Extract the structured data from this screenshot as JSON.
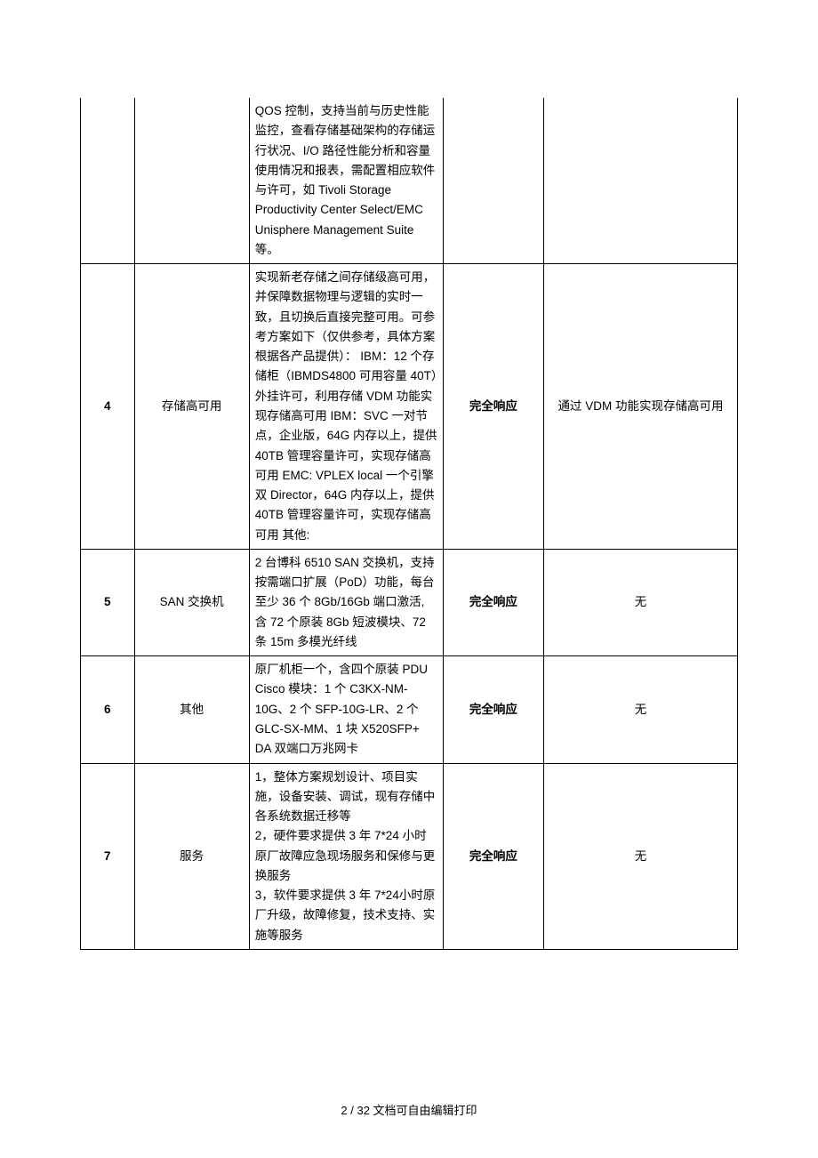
{
  "rows": [
    {
      "idx": "",
      "name": "",
      "desc": "QOS 控制，支持当前与历史性能监控，查看存储基础架构的存储运行状况、I/O 路径性能分析和容量使用情况和报表，需配置相应软件与许可，如 Tivoli Storage Productivity Center Select/EMC Unisphere Management Suite 等。",
      "resp": "",
      "note": "",
      "continuation": true
    },
    {
      "idx": "4",
      "name": "存储高可用",
      "desc": "实现新老存储之间存储级高可用，并保障数据物理与逻辑的实时一致，且切换后直接完整可用。可参考方案如下（仅供参考，具体方案根据各产品提供）： IBM：12 个存储柜（IBMDS4800 可用容量 40T）外挂许可，利用存储 VDM 功能实现存储高可用 IBM：SVC 一对节点，企业版，64G 内存以上，提供 40TB 管理容量许可，实现存储高可用 EMC: VPLEX local  一个引擎双 Director，64G 内存以上，提供 40TB 管理容量许可，实现存储高可用 其他:",
      "resp": "完全响应",
      "note": "通过 VDM 功能实现存储高可用"
    },
    {
      "idx": "5",
      "name": "SAN 交换机",
      "desc": "2 台博科 6510 SAN 交换机，支持按需端口扩展（PoD）功能，每台至少 36 个 8Gb/16Gb 端口激活,  含 72 个原装 8Gb 短波模块、72 条 15m 多模光纤线",
      "resp": "完全响应",
      "note": "无"
    },
    {
      "idx": "6",
      "name": "其他",
      "desc": "原厂机柜一个，含四个原装 PDU Cisco 模块：1 个 C3KX-NM-10G、2 个 SFP-10G-LR、2 个 GLC-SX-MM、1 块 X520SFP+ DA 双端口万兆网卡",
      "resp": "完全响应",
      "note": "无"
    },
    {
      "idx": "7",
      "name": "服务",
      "desc": "1，整体方案规划设计、项目实施，设备安装、调试，现有存储中各系统数据迁移等\n2，硬件要求提供 3 年 7*24 小时原厂故障应急现场服务和保修与更换服务\n3，软件要求提供 3 年 7*24小时原厂升级，故障修复，技术支持、实施等服务",
      "resp": "完全响应",
      "note": "无"
    }
  ],
  "footer": "2 / 32 文档可自由编辑打印"
}
